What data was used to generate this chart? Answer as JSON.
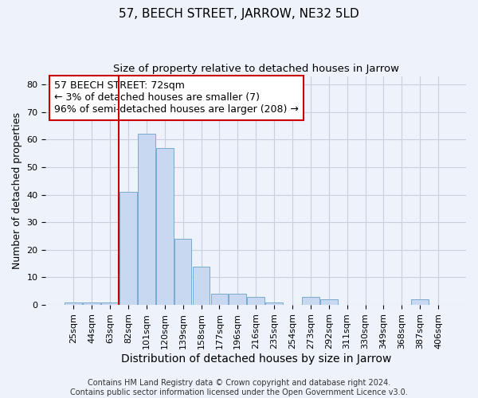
{
  "title": "57, BEECH STREET, JARROW, NE32 5LD",
  "subtitle": "Size of property relative to detached houses in Jarrow",
  "xlabel": "Distribution of detached houses by size in Jarrow",
  "ylabel": "Number of detached properties",
  "bar_labels": [
    "25sqm",
    "44sqm",
    "63sqm",
    "82sqm",
    "101sqm",
    "120sqm",
    "139sqm",
    "158sqm",
    "177sqm",
    "196sqm",
    "216sqm",
    "235sqm",
    "254sqm",
    "273sqm",
    "292sqm",
    "311sqm",
    "330sqm",
    "349sqm",
    "368sqm",
    "387sqm",
    "406sqm"
  ],
  "bar_values": [
    1,
    1,
    1,
    41,
    62,
    57,
    24,
    14,
    4,
    4,
    3,
    1,
    0,
    3,
    2,
    0,
    0,
    0,
    0,
    2,
    0
  ],
  "bar_color": "#c8d8f0",
  "bar_edge_color": "#7aaad0",
  "bg_color": "#eef2fa",
  "grid_color": "#c8d0e0",
  "vline_color": "#cc0000",
  "annotation_text": "57 BEECH STREET: 72sqm\n← 3% of detached houses are smaller (7)\n96% of semi-detached houses are larger (208) →",
  "annotation_box_color": "#ffffff",
  "annotation_box_edge": "#cc0000",
  "ylim": [
    0,
    83
  ],
  "yticks": [
    0,
    10,
    20,
    30,
    40,
    50,
    60,
    70,
    80
  ],
  "footer_line1": "Contains HM Land Registry data © Crown copyright and database right 2024.",
  "footer_line2": "Contains public sector information licensed under the Open Government Licence v3.0.",
  "title_fontsize": 11,
  "subtitle_fontsize": 9.5,
  "xlabel_fontsize": 10,
  "ylabel_fontsize": 9,
  "tick_fontsize": 8,
  "annotation_fontsize": 9,
  "footer_fontsize": 7
}
